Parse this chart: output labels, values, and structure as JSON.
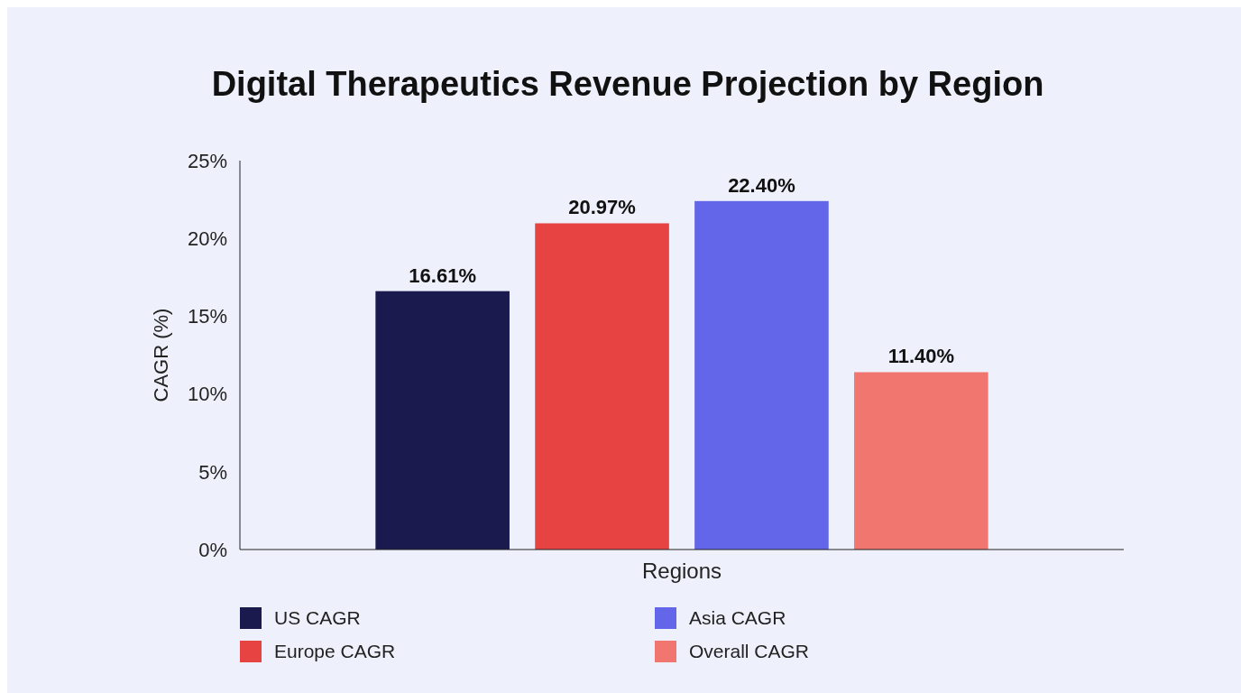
{
  "chart_data": {
    "type": "bar",
    "title": "Digital Therapeutics Revenue Projection by Region",
    "xlabel": "Regions",
    "ylabel": "CAGR (%)",
    "categories": [
      null,
      null,
      null,
      null
    ],
    "series": [
      {
        "name": "US CAGR",
        "color": "#1b1a4f",
        "values": [
          16.61,
          null,
          null,
          null
        ]
      },
      {
        "name": "Europe CAGR",
        "color": "#e84343",
        "values": [
          null,
          20.97,
          null,
          null
        ]
      },
      {
        "name": "Asia CAGR",
        "color": "#6366e9",
        "values": [
          null,
          null,
          22.4,
          null
        ]
      },
      {
        "name": "Overall CAGR",
        "color": "#f27670",
        "values": [
          null,
          null,
          null,
          11.4
        ]
      }
    ],
    "value_labels": [
      "16.61%",
      "20.97%",
      "22.40%",
      "11.40%"
    ],
    "ylim": [
      0,
      25
    ],
    "yticks": [
      {
        "value": 0,
        "label": "0%"
      },
      {
        "value": 5,
        "label": "5%"
      },
      {
        "value": 10,
        "label": "10%"
      },
      {
        "value": 15,
        "label": "15%"
      },
      {
        "value": 20,
        "label": "20%"
      },
      {
        "value": 25,
        "label": "25%"
      }
    ],
    "grid": false,
    "legend": "bottom"
  }
}
